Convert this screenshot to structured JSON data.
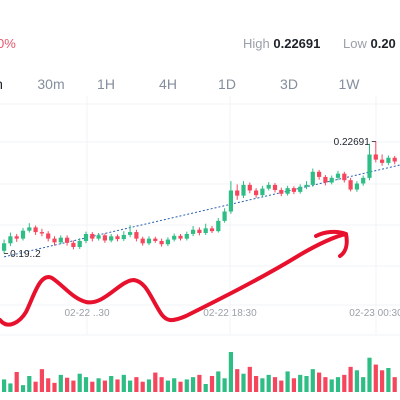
{
  "header": {
    "change_pct": "0%",
    "high_label": "High",
    "high_value": "0.22691",
    "low_label": "Low",
    "low_value": "0.20"
  },
  "intervals": [
    {
      "label": "n",
      "active": true
    },
    {
      "label": "30m",
      "active": false
    },
    {
      "label": "1H",
      "active": false
    },
    {
      "label": "4H",
      "active": false
    },
    {
      "label": "1D",
      "active": false
    },
    {
      "label": "3D",
      "active": false
    },
    {
      "label": "1W",
      "active": false
    }
  ],
  "colors": {
    "up": "#2ebd85",
    "down": "#f6465d",
    "annotation": "#e8112d",
    "trendline": "#2a5fb0"
  },
  "chart_data": {
    "type": "candlestick",
    "x_ticks": [
      "02-22 12:30",
      "02-22 18:30",
      "02-23 00:30"
    ],
    "x_tick_labels_visible": [
      "02-22 ..30",
      "02-22 18:30",
      "02-23 00:30"
    ],
    "price_ylim": [
      0.1865,
      0.2295
    ],
    "high_marker": "0.22691",
    "low_marker": "0.19..2",
    "candles": [
      [
        0.1981,
        0.1997,
        0.2005,
        0.1975
      ],
      [
        0.1997,
        0.2012,
        0.202,
        0.1991
      ],
      [
        0.2012,
        0.2007,
        0.2017,
        0.2
      ],
      [
        0.2007,
        0.2024,
        0.203,
        0.2003
      ],
      [
        0.2024,
        0.2031,
        0.204,
        0.202
      ],
      [
        0.2031,
        0.2021,
        0.2035,
        0.2015
      ],
      [
        0.2021,
        0.2018,
        0.2028,
        0.2012
      ],
      [
        0.2018,
        0.2007,
        0.2023,
        0.2001
      ],
      [
        0.2007,
        0.1999,
        0.2012,
        0.1992
      ],
      [
        0.1999,
        0.2009,
        0.2014,
        0.1995
      ],
      [
        0.2009,
        0.1998,
        0.2014,
        0.1992
      ],
      [
        0.1998,
        0.1989,
        0.2003,
        0.1984
      ],
      [
        0.1989,
        0.2002,
        0.2008,
        0.1985
      ],
      [
        0.2002,
        0.2017,
        0.2022,
        0.1997
      ],
      [
        0.2017,
        0.2007,
        0.2021,
        0.2001
      ],
      [
        0.2007,
        0.2014,
        0.2019,
        0.2003
      ],
      [
        0.2014,
        0.2003,
        0.2018,
        0.1998
      ],
      [
        0.2003,
        0.2012,
        0.2017,
        0.1999
      ],
      [
        0.2012,
        0.2006,
        0.2016,
        0.2001
      ],
      [
        0.2006,
        0.2015,
        0.2023,
        0.2002
      ],
      [
        0.2015,
        0.2021,
        0.2036,
        0.201
      ],
      [
        0.2021,
        0.2007,
        0.2026,
        0.2001
      ],
      [
        0.2007,
        0.1997,
        0.2011,
        0.1992
      ],
      [
        0.1997,
        0.2007,
        0.2012,
        0.1993
      ],
      [
        0.2007,
        0.2002,
        0.2011,
        0.1998
      ],
      [
        0.2002,
        0.1995,
        0.2007,
        0.199
      ],
      [
        0.1995,
        0.2005,
        0.201,
        0.1991
      ],
      [
        0.2005,
        0.2013,
        0.2018,
        0.2001
      ],
      [
        0.2013,
        0.2007,
        0.2017,
        0.2003
      ],
      [
        0.2007,
        0.2017,
        0.2022,
        0.2003
      ],
      [
        0.2017,
        0.2026,
        0.2034,
        0.2012
      ],
      [
        0.2026,
        0.2019,
        0.2031,
        0.2014
      ],
      [
        0.2019,
        0.2029,
        0.2039,
        0.2015
      ],
      [
        0.2029,
        0.2023,
        0.2034,
        0.2019
      ],
      [
        0.2023,
        0.2045,
        0.2051,
        0.202
      ],
      [
        0.2045,
        0.2065,
        0.2072,
        0.2041
      ],
      [
        0.2065,
        0.211,
        0.213,
        0.206
      ],
      [
        0.211,
        0.2099,
        0.2123,
        0.209
      ],
      [
        0.2099,
        0.2122,
        0.213,
        0.2094
      ],
      [
        0.2122,
        0.211,
        0.2127,
        0.2104
      ],
      [
        0.211,
        0.21,
        0.2115,
        0.2094
      ],
      [
        0.21,
        0.2114,
        0.212,
        0.2096
      ],
      [
        0.2114,
        0.2122,
        0.2128,
        0.211
      ],
      [
        0.2122,
        0.2111,
        0.2126,
        0.2106
      ],
      [
        0.2111,
        0.2103,
        0.2116,
        0.2098
      ],
      [
        0.2103,
        0.2115,
        0.212,
        0.2099
      ],
      [
        0.2115,
        0.2107,
        0.2119,
        0.2102
      ],
      [
        0.2107,
        0.2118,
        0.2123,
        0.2103
      ],
      [
        0.2118,
        0.2122,
        0.213,
        0.2113
      ],
      [
        0.2122,
        0.215,
        0.2157,
        0.2118
      ],
      [
        0.215,
        0.2139,
        0.2154,
        0.2133
      ],
      [
        0.2139,
        0.2127,
        0.2143,
        0.2121
      ],
      [
        0.2127,
        0.2137,
        0.2142,
        0.2123
      ],
      [
        0.2137,
        0.2146,
        0.2152,
        0.2132
      ],
      [
        0.2146,
        0.2132,
        0.215,
        0.2127
      ],
      [
        0.2132,
        0.2112,
        0.2137,
        0.2108
      ],
      [
        0.2112,
        0.2125,
        0.213,
        0.2107
      ],
      [
        0.2125,
        0.2137,
        0.2142,
        0.212
      ],
      [
        0.2137,
        0.2187,
        0.221,
        0.2132
      ],
      [
        0.2187,
        0.2176,
        0.2215,
        0.217
      ],
      [
        0.2176,
        0.2169,
        0.2187,
        0.2163
      ],
      [
        0.2169,
        0.218,
        0.2185,
        0.2164
      ],
      [
        0.218,
        0.2172,
        0.2184,
        0.2166
      ]
    ],
    "volumes": [
      22,
      15,
      35,
      12,
      28,
      18,
      40,
      24,
      16,
      30,
      25,
      20,
      32,
      26,
      18,
      24,
      20,
      28,
      22,
      30,
      20,
      26,
      18,
      22,
      34,
      26,
      20,
      24,
      18,
      22,
      26,
      30,
      14,
      28,
      36,
      24,
      70,
      40,
      32,
      44,
      28,
      24,
      30,
      26,
      20,
      36,
      24,
      30,
      28,
      40,
      34,
      26,
      22,
      26,
      30,
      44,
      38,
      26,
      60,
      48,
      38,
      42,
      26
    ],
    "trendline": {
      "from": [
        0,
        0.1968
      ],
      "to": [
        63,
        0.2165
      ]
    }
  }
}
